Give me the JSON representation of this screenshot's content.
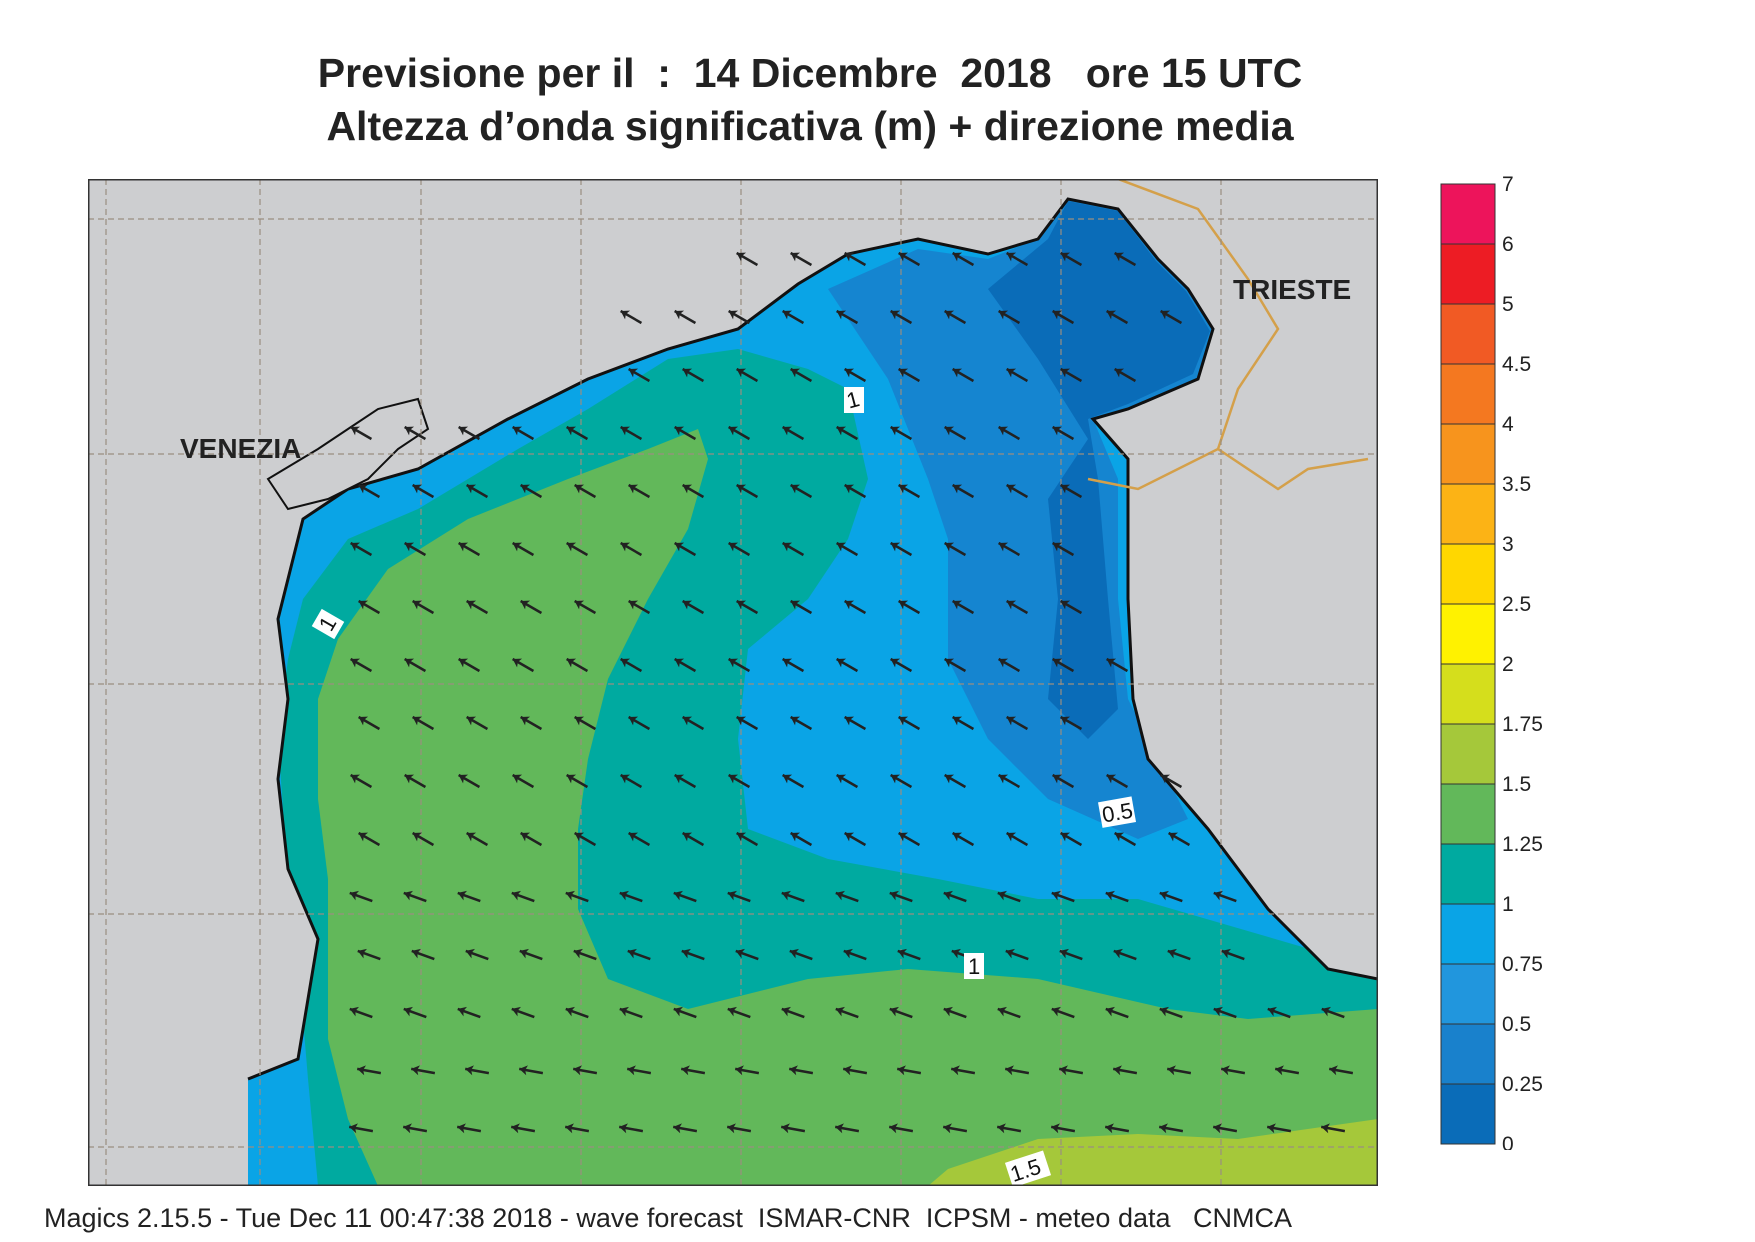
{
  "title_line1": "Previsione per il  :  14 Dicembre  2018   ore 15 UTC",
  "title_line2": "Altezza d’onda significativa (m) + direzione media",
  "footer": "Magics 2.15.5 - Tue Dec 11 00:47:38 2018 - wave forecast  ISMAR-CNR  ICPSM - meteo data   CNMCA",
  "cities": {
    "venezia": "VENEZIA",
    "trieste": "TRIESTE"
  },
  "contour_labels": {
    "c1_north": "1",
    "c1_west": "1",
    "c05_east": "0.5",
    "c1_south": "1",
    "c15_south": "1.5"
  },
  "legend": {
    "ticks": [
      "0",
      "0.25",
      "0.5",
      "0.75",
      "1",
      "1.25",
      "1.5",
      "1.75",
      "2",
      "2.5",
      "3",
      "3.5",
      "4",
      "4.5",
      "5",
      "6",
      "7"
    ],
    "colors": [
      "#0a6cb8",
      "#1981cc",
      "#2196dd",
      "#0aa4e6",
      "#00aaa0",
      "#62b85a",
      "#a5c83a",
      "#d5de1c",
      "#fff200",
      "#ffd700",
      "#fcb315",
      "#f7941d",
      "#f47820",
      "#f15a24",
      "#ed1c24",
      "#ed145b"
    ]
  },
  "colors": {
    "land": "#cdced0",
    "coast": "#111111",
    "border": "#d4a04a",
    "grid": "#9a8e80",
    "arrow": "#222222"
  }
}
